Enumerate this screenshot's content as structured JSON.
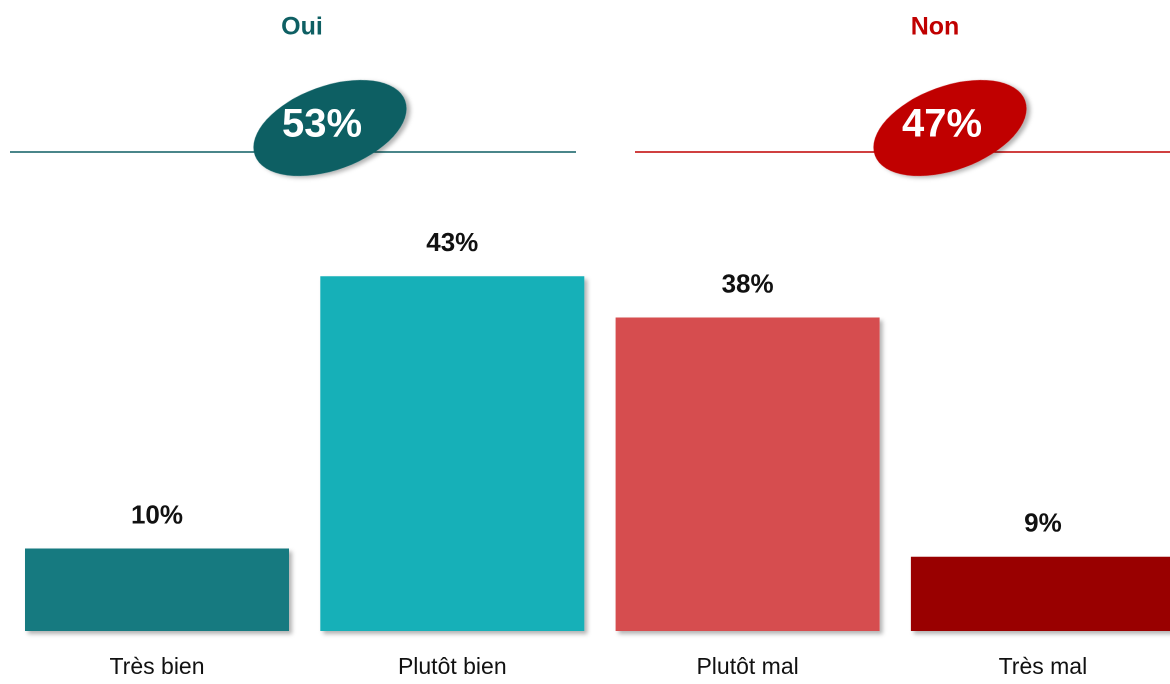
{
  "chart_data": {
    "type": "bar",
    "categories": [
      "Très bien",
      "Plutôt bien",
      "Plutôt mal",
      "Très mal"
    ],
    "values": [
      10,
      43,
      38,
      9
    ],
    "value_labels": [
      "10%",
      "43%",
      "38%",
      "9%"
    ],
    "colors": [
      "#137a80",
      "#14b0b8",
      "#d64e50",
      "#990000"
    ],
    "groups": [
      {
        "name": "Oui",
        "value": 53,
        "value_label": "53%",
        "color": "#0e5f63"
      },
      {
        "name": "Non",
        "value": 47,
        "value_label": "47%",
        "color": "#c00000"
      }
    ]
  }
}
